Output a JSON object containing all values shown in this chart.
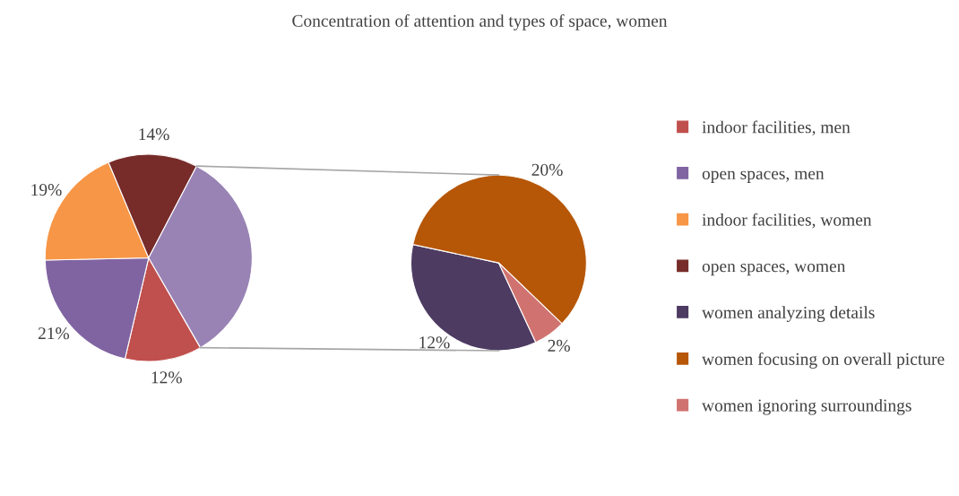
{
  "chart_data": [
    {
      "type": "pie",
      "title": "Concentration of attention and types of space, women",
      "categories": [
        "indoor facilities, men",
        "open spaces, men",
        "indoor facilities, women",
        "open spaces, women",
        null
      ],
      "values": [
        12,
        21,
        19,
        14,
        34
      ],
      "colors": [
        "#c0504d",
        "#8064a2",
        "#f79646",
        "#772c2a",
        "#9983b5"
      ],
      "value_labels": [
        "12%",
        "21%",
        "19%",
        "14%",
        null
      ],
      "legend": "right"
    },
    {
      "type": "pie",
      "categories": [
        "women analyzing details",
        "women focusing on overall picture",
        "women ignoring surroundings"
      ],
      "values": [
        12,
        20,
        2
      ],
      "colors": [
        "#4d3b62",
        "#b65708",
        "#d07370"
      ],
      "value_labels": [
        "12%",
        "20%",
        "2%"
      ],
      "legend": "right"
    }
  ]
}
